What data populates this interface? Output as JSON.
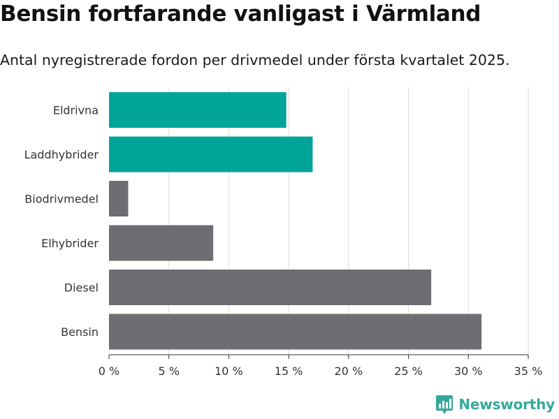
{
  "title": "Bensin fortfarande vanligast i Värmland",
  "subtitle": "Antal nyregistrerade fordon per drivmedel under första kvartalet 2025.",
  "brand": "Newsworthy",
  "colors": {
    "highlight": "#00a499",
    "default": "#6e6d72",
    "grid": "#dddddd",
    "axis": "#333333",
    "brand": "#35a89a"
  },
  "chart_data": {
    "type": "bar",
    "orientation": "horizontal",
    "categories": [
      "Eldrivna",
      "Laddhybrider",
      "Biodrivmedel",
      "Elhybrider",
      "Diesel",
      "Bensin"
    ],
    "values": [
      14.8,
      17.0,
      1.6,
      8.7,
      26.9,
      31.1
    ],
    "highlighted": [
      true,
      true,
      false,
      false,
      false,
      false
    ],
    "xlim": [
      0,
      35
    ],
    "xticks": [
      0,
      5,
      10,
      15,
      20,
      25,
      30,
      35
    ],
    "tick_labels": [
      "0 %",
      "5 %",
      "10 %",
      "15 %",
      "20 %",
      "25 %",
      "30 %",
      "35 %"
    ],
    "grid": true,
    "xlabel": "",
    "ylabel": ""
  }
}
